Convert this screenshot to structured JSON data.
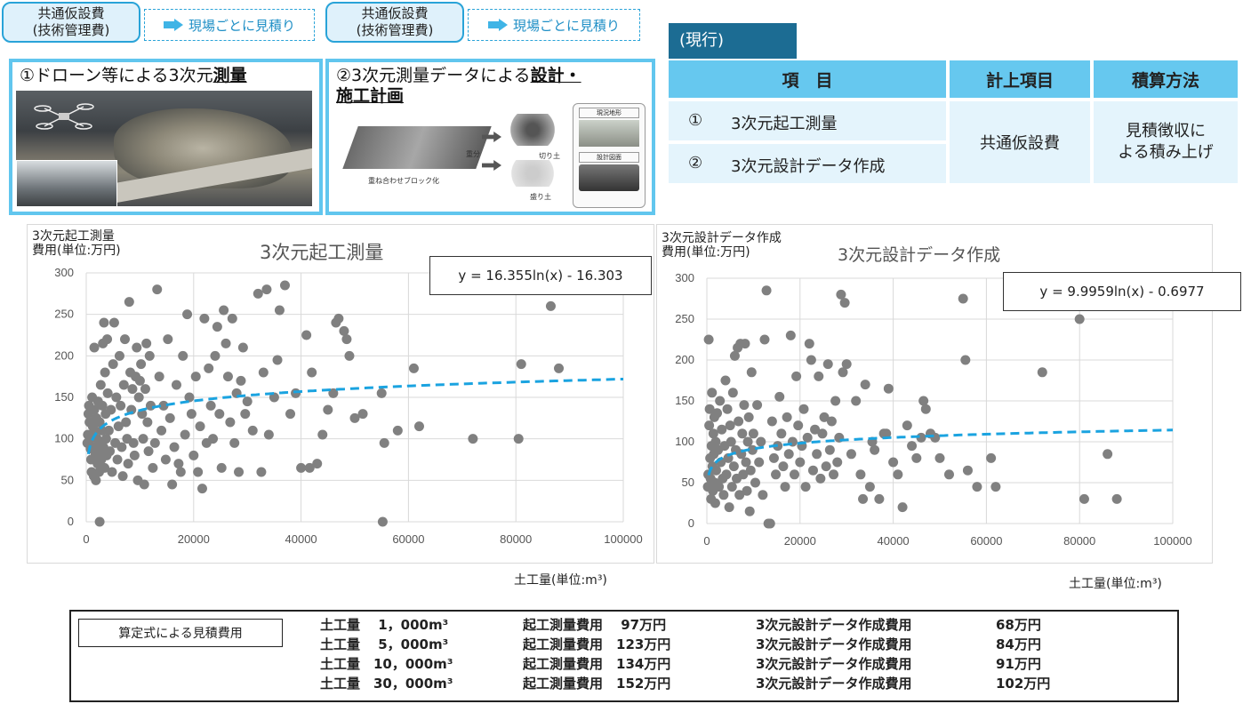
{
  "callouts": [
    {
      "bubble_line1": "共通仮設費",
      "bubble_line2": "(技術管理費)",
      "dash": "現場ごとに見積り"
    },
    {
      "bubble_line1": "共通仮設費",
      "bubble_line2": "(技術管理費)",
      "dash": "現場ごとに見積り"
    }
  ],
  "panels": [
    {
      "prefix": "①ドローン等による3次元",
      "bold": "測量",
      "suffix": ""
    },
    {
      "prefix": "②3次元測量データによる",
      "bold": "設計・",
      "line2": "施工計画"
    }
  ],
  "diagram_labels": {
    "a": "重分",
    "b": "盛り土",
    "c": "切り土",
    "d": "重ね合わせブロック化",
    "e": "盛り土",
    "f": "現況地形",
    "g": "設計図面"
  },
  "current": {
    "tag": "(現行)",
    "headers": [
      "項　目",
      "計上項目",
      "積算方法"
    ],
    "rows": [
      {
        "num": "①",
        "item": "3次元起工測量"
      },
      {
        "num": "②",
        "item": "3次元設計データ作成"
      }
    ],
    "merged_cost": "共通仮設費",
    "merged_method": "見積徴収に\nよる積み上げ",
    "merged_method_line1": "見積徴収に",
    "merged_method_line2": "よる積み上げ"
  },
  "chart_data": [
    {
      "type": "scatter",
      "title": "3次元起工測量",
      "ylabel": "3次元起工測量\n費用(単位:万円)",
      "ylabel_line1": "3次元起工測量",
      "ylabel_line2": "費用(単位:万円)",
      "xlabel": "土工量(単位:m³)",
      "equation": "y = 16.355ln(x) - 16.303",
      "trend": {
        "a": 16.355,
        "b": -16.303
      },
      "xlim": [
        0,
        100000
      ],
      "ylim": [
        0,
        300
      ],
      "xticks": [
        0,
        20000,
        40000,
        60000,
        80000,
        100000
      ],
      "yticks": [
        0,
        50,
        100,
        150,
        200,
        250,
        300
      ],
      "series_color": "#808080",
      "trend_color": "#1aa3e0",
      "points": [
        [
          200,
          95
        ],
        [
          300,
          105
        ],
        [
          400,
          130
        ],
        [
          500,
          140
        ],
        [
          600,
          120
        ],
        [
          700,
          100
        ],
        [
          800,
          88
        ],
        [
          900,
          75
        ],
        [
          1000,
          60
        ],
        [
          1100,
          150
        ],
        [
          1200,
          115
        ],
        [
          1300,
          90
        ],
        [
          1400,
          55
        ],
        [
          1500,
          135
        ],
        [
          1600,
          110
        ],
        [
          1700,
          80
        ],
        [
          1800,
          50
        ],
        [
          1900,
          125
        ],
        [
          2000,
          100
        ],
        [
          2100,
          70
        ],
        [
          2200,
          145
        ],
        [
          2300,
          85
        ],
        [
          2400,
          60
        ],
        [
          2500,
          120
        ],
        [
          2600,
          95
        ],
        [
          2700,
          165
        ],
        [
          2800,
          75
        ],
        [
          2900,
          110
        ],
        [
          3000,
          140
        ],
        [
          3100,
          215
        ],
        [
          3200,
          90
        ],
        [
          3300,
          240
        ],
        [
          3400,
          65
        ],
        [
          3500,
          180
        ],
        [
          3600,
          130
        ],
        [
          3700,
          100
        ],
        [
          3800,
          80
        ],
        [
          3900,
          220
        ],
        [
          4000,
          155
        ],
        [
          4200,
          110
        ],
        [
          4400,
          85
        ],
        [
          4600,
          135
        ],
        [
          4800,
          60
        ],
        [
          5000,
          190
        ],
        [
          5200,
          240
        ],
        [
          5400,
          95
        ],
        [
          5600,
          150
        ],
        [
          5800,
          75
        ],
        [
          6000,
          115
        ],
        [
          6200,
          200
        ],
        [
          6400,
          140
        ],
        [
          6600,
          90
        ],
        [
          6800,
          55
        ],
        [
          7000,
          165
        ],
        [
          7200,
          220
        ],
        [
          7400,
          120
        ],
        [
          7600,
          100
        ],
        [
          7800,
          70
        ],
        [
          8000,
          265
        ],
        [
          8200,
          180
        ],
        [
          8400,
          135
        ],
        [
          8600,
          160
        ],
        [
          8800,
          95
        ],
        [
          9000,
          80
        ],
        [
          9200,
          175
        ],
        [
          9400,
          210
        ],
        [
          9600,
          50
        ],
        [
          9800,
          150
        ],
        [
          10000,
          170
        ],
        [
          10200,
          190
        ],
        [
          10400,
          130
        ],
        [
          10600,
          100
        ],
        [
          10800,
          45
        ],
        [
          11000,
          160
        ],
        [
          11200,
          215
        ],
        [
          11400,
          120
        ],
        [
          11600,
          85
        ],
        [
          11800,
          200
        ],
        [
          12000,
          140
        ],
        [
          12400,
          65
        ],
        [
          12800,
          95
        ],
        [
          13200,
          280
        ],
        [
          13600,
          175
        ],
        [
          14000,
          110
        ],
        [
          14400,
          140
        ],
        [
          14800,
          75
        ],
        [
          15200,
          220
        ],
        [
          15600,
          125
        ],
        [
          16000,
          45
        ],
        [
          16400,
          90
        ],
        [
          16800,
          165
        ],
        [
          17200,
          70
        ],
        [
          17600,
          60
        ],
        [
          18000,
          200
        ],
        [
          18400,
          105
        ],
        [
          18800,
          250
        ],
        [
          19200,
          150
        ],
        [
          19600,
          130
        ],
        [
          20000,
          80
        ],
        [
          20400,
          175
        ],
        [
          20800,
          60
        ],
        [
          21200,
          115
        ],
        [
          21600,
          40
        ],
        [
          22000,
          245
        ],
        [
          22400,
          95
        ],
        [
          22800,
          185
        ],
        [
          23200,
          140
        ],
        [
          23600,
          100
        ],
        [
          24000,
          200
        ],
        [
          24400,
          235
        ],
        [
          24800,
          130
        ],
        [
          25200,
          65
        ],
        [
          25600,
          255
        ],
        [
          26000,
          215
        ],
        [
          26400,
          175
        ],
        [
          26800,
          120
        ],
        [
          27200,
          245
        ],
        [
          27600,
          95
        ],
        [
          28000,
          155
        ],
        [
          28400,
          60
        ],
        [
          28800,
          170
        ],
        [
          29200,
          210
        ],
        [
          29600,
          130
        ],
        [
          30000,
          145
        ],
        [
          31000,
          110
        ],
        [
          32000,
          275
        ],
        [
          32600,
          60
        ],
        [
          33000,
          180
        ],
        [
          33600,
          280
        ],
        [
          34000,
          105
        ],
        [
          35000,
          150
        ],
        [
          35600,
          195
        ],
        [
          36000,
          255
        ],
        [
          37000,
          285
        ],
        [
          38000,
          130
        ],
        [
          39000,
          155
        ],
        [
          40000,
          65
        ],
        [
          41000,
          225
        ],
        [
          41600,
          65
        ],
        [
          42000,
          180
        ],
        [
          43000,
          70
        ],
        [
          44000,
          105
        ],
        [
          45000,
          135
        ],
        [
          46000,
          155
        ],
        [
          46500,
          240
        ],
        [
          47000,
          245
        ],
        [
          48000,
          230
        ],
        [
          48500,
          220
        ],
        [
          49000,
          200
        ],
        [
          50000,
          125
        ],
        [
          51500,
          130
        ],
        [
          55000,
          155
        ],
        [
          55500,
          95
        ],
        [
          55200,
          0
        ],
        [
          58000,
          110
        ],
        [
          61000,
          185
        ],
        [
          62000,
          115
        ],
        [
          72000,
          100
        ],
        [
          80500,
          100
        ],
        [
          81000,
          190
        ],
        [
          86500,
          260
        ],
        [
          88000,
          185
        ],
        [
          2500,
          0
        ],
        [
          1500,
          210
        ]
      ]
    },
    {
      "type": "scatter",
      "title": "3次元設計データ作成",
      "ylabel": "3次元設計データ作成\n費用(単位:万円)",
      "ylabel_line1": "3次元設計データ作成",
      "ylabel_line2": "費用(単位:万円)",
      "xlabel": "土工量(単位:m³)",
      "equation": "y = 9.9959ln(x) - 0.6977",
      "trend": {
        "a": 9.9959,
        "b": -0.6977
      },
      "xlim": [
        0,
        100000
      ],
      "ylim": [
        0,
        300
      ],
      "xticks": [
        0,
        20000,
        40000,
        60000,
        80000,
        100000
      ],
      "yticks": [
        0,
        50,
        100,
        150,
        200,
        250,
        300
      ],
      "series_color": "#808080",
      "trend_color": "#1aa3e0",
      "points": [
        [
          200,
          45
        ],
        [
          300,
          60
        ],
        [
          400,
          225
        ],
        [
          500,
          120
        ],
        [
          600,
          140
        ],
        [
          700,
          80
        ],
        [
          800,
          55
        ],
        [
          900,
          30
        ],
        [
          1000,
          95
        ],
        [
          1100,
          160
        ],
        [
          1200,
          70
        ],
        [
          1300,
          40
        ],
        [
          1400,
          110
        ],
        [
          1500,
          85
        ],
        [
          1600,
          130
        ],
        [
          1700,
          50
        ],
        [
          1800,
          25
        ],
        [
          1900,
          100
        ],
        [
          2000,
          65
        ],
        [
          2200,
          135
        ],
        [
          2400,
          90
        ],
        [
          2600,
          45
        ],
        [
          2800,
          150
        ],
        [
          3000,
          75
        ],
        [
          3200,
          115
        ],
        [
          3400,
          55
        ],
        [
          3600,
          35
        ],
        [
          3800,
          95
        ],
        [
          4000,
          175
        ],
        [
          4200,
          60
        ],
        [
          4400,
          140
        ],
        [
          4600,
          80
        ],
        [
          4800,
          20
        ],
        [
          5000,
          120
        ],
        [
          5200,
          100
        ],
        [
          5400,
          45
        ],
        [
          5600,
          160
        ],
        [
          5800,
          70
        ],
        [
          6000,
          205
        ],
        [
          6200,
          90
        ],
        [
          6400,
          55
        ],
        [
          6600,
          215
        ],
        [
          6800,
          125
        ],
        [
          7000,
          35
        ],
        [
          7200,
          220
        ],
        [
          7400,
          85
        ],
        [
          7600,
          110
        ],
        [
          7800,
          60
        ],
        [
          8000,
          145
        ],
        [
          8200,
          220
        ],
        [
          8400,
          75
        ],
        [
          8600,
          40
        ],
        [
          8800,
          100
        ],
        [
          9000,
          130
        ],
        [
          9200,
          15
        ],
        [
          9400,
          65
        ],
        [
          9600,
          185
        ],
        [
          9800,
          90
        ],
        [
          10000,
          110
        ],
        [
          10400,
          50
        ],
        [
          10800,
          145
        ],
        [
          11200,
          75
        ],
        [
          11600,
          100
        ],
        [
          12000,
          35
        ],
        [
          12400,
          225
        ],
        [
          12800,
          285
        ],
        [
          13200,
          0
        ],
        [
          13600,
          0
        ],
        [
          14000,
          125
        ],
        [
          14400,
          80
        ],
        [
          14800,
          60
        ],
        [
          15200,
          95
        ],
        [
          15600,
          155
        ],
        [
          16000,
          110
        ],
        [
          16400,
          70
        ],
        [
          16800,
          45
        ],
        [
          17200,
          130
        ],
        [
          17600,
          85
        ],
        [
          18000,
          230
        ],
        [
          18400,
          100
        ],
        [
          18800,
          60
        ],
        [
          19200,
          180
        ],
        [
          19600,
          120
        ],
        [
          20000,
          75
        ],
        [
          20400,
          95
        ],
        [
          20800,
          140
        ],
        [
          21200,
          45
        ],
        [
          21600,
          105
        ],
        [
          22000,
          220
        ],
        [
          22400,
          200
        ],
        [
          22800,
          65
        ],
        [
          23200,
          115
        ],
        [
          23600,
          85
        ],
        [
          24000,
          180
        ],
        [
          24400,
          55
        ],
        [
          24800,
          110
        ],
        [
          25200,
          130
        ],
        [
          25600,
          70
        ],
        [
          26000,
          195
        ],
        [
          26400,
          90
        ],
        [
          26800,
          125
        ],
        [
          27200,
          60
        ],
        [
          27600,
          150
        ],
        [
          28000,
          75
        ],
        [
          28400,
          105
        ],
        [
          28800,
          280
        ],
        [
          29200,
          185
        ],
        [
          29600,
          270
        ],
        [
          30000,
          195
        ],
        [
          31000,
          85
        ],
        [
          32000,
          150
        ],
        [
          33000,
          60
        ],
        [
          33500,
          30
        ],
        [
          34000,
          170
        ],
        [
          35000,
          45
        ],
        [
          36000,
          90
        ],
        [
          37000,
          30
        ],
        [
          38000,
          110
        ],
        [
          39000,
          165
        ],
        [
          40000,
          75
        ],
        [
          41000,
          60
        ],
        [
          42000,
          20
        ],
        [
          43000,
          120
        ],
        [
          44000,
          95
        ],
        [
          45000,
          80
        ],
        [
          46000,
          105
        ],
        [
          46500,
          150
        ],
        [
          47000,
          140
        ],
        [
          48000,
          110
        ],
        [
          49000,
          105
        ],
        [
          50000,
          80
        ],
        [
          52000,
          60
        ],
        [
          55000,
          275
        ],
        [
          55500,
          200
        ],
        [
          56000,
          65
        ],
        [
          58000,
          45
        ],
        [
          61000,
          80
        ],
        [
          62000,
          45
        ],
        [
          72000,
          185
        ],
        [
          80000,
          250
        ],
        [
          81000,
          30
        ],
        [
          86000,
          85
        ],
        [
          88000,
          30
        ],
        [
          38500,
          110
        ],
        [
          35500,
          100
        ]
      ]
    }
  ],
  "bottom": {
    "label": "算定式による見積費用",
    "rows": [
      {
        "vol": "土工量　 1，000m³",
        "survey": "起工測量費用　 97万円",
        "design": "3次元設計データ作成費用",
        "design_cost": "68万円"
      },
      {
        "vol": "土工量　 5，000m³",
        "survey": "起工測量費用　123万円",
        "design": "3次元設計データ作成費用",
        "design_cost": "84万円"
      },
      {
        "vol": "土工量　10，000m³",
        "survey": "起工測量費用　134万円",
        "design": "3次元設計データ作成費用",
        "design_cost": "91万円"
      },
      {
        "vol": "土工量　30，000m³",
        "survey": "起工測量費用　152万円",
        "design": "3次元設計データ作成費用",
        "design_cost": "102万円"
      }
    ]
  }
}
